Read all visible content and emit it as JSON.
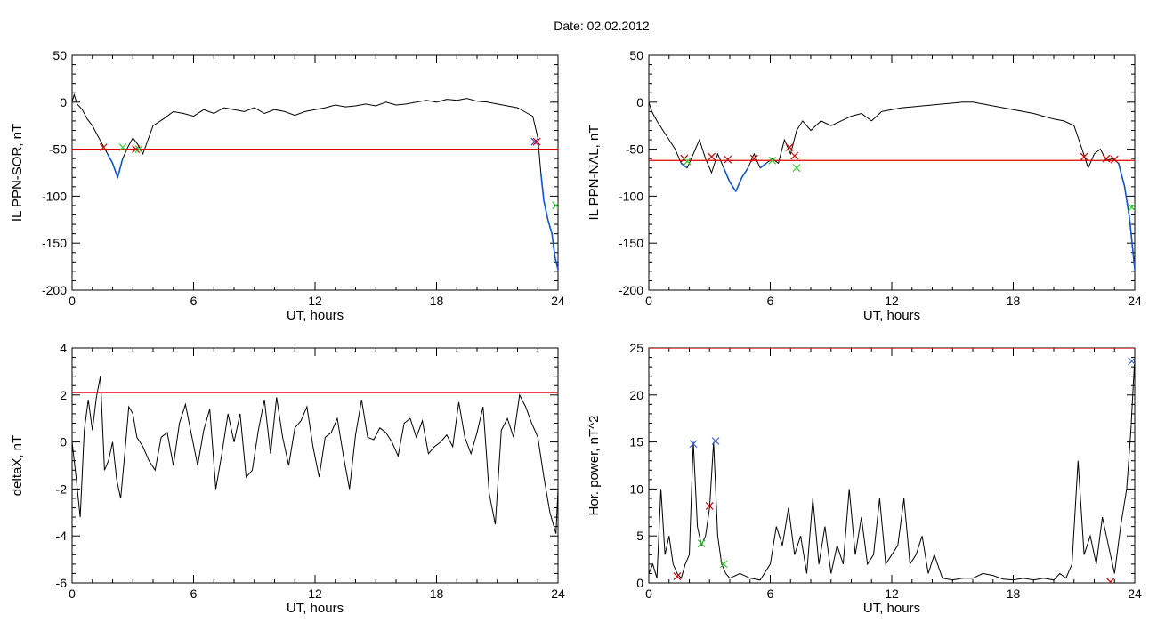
{
  "figure_title": "Date:  02.02.2012",
  "chart_data": [
    {
      "type": "line",
      "ylabel": "IL PPN-SOR, nT",
      "xlabel": "UT, hours",
      "xlim": [
        0,
        24
      ],
      "ylim": [
        -200,
        50
      ],
      "xticks": [
        "0",
        "6",
        "12",
        "18",
        "24"
      ],
      "yticks": [
        "50",
        "0",
        "-50",
        "-100",
        "-150",
        "-200"
      ],
      "threshold": -50,
      "threshold_color": "#dd0000",
      "series": [
        {
          "line_color": "#000000",
          "x": [
            0,
            0.1,
            0.25,
            0.5,
            0.75,
            1.0,
            1.25,
            1.5,
            1.75,
            2.0,
            2.25,
            2.5,
            2.75,
            3.0,
            3.25,
            3.5,
            3.75,
            4.0,
            4.5,
            5.0,
            5.5,
            6.0,
            6.5,
            7.0,
            7.5,
            8.0,
            8.5,
            9.0,
            9.5,
            10.0,
            10.5,
            11.0,
            11.5,
            12.0,
            12.5,
            13.0,
            13.5,
            14.0,
            14.5,
            15.0,
            15.5,
            16.0,
            16.5,
            17.0,
            17.5,
            18.0,
            18.5,
            19.0,
            19.5,
            20.0,
            20.5,
            21.0,
            21.5,
            22.0,
            22.5,
            22.75,
            23.0,
            23.15,
            23.3,
            23.5,
            23.7,
            23.85,
            24.0
          ],
          "y": [
            0,
            8,
            -2,
            -8,
            -18,
            -25,
            -35,
            -45,
            -55,
            -65,
            -80,
            -60,
            -48,
            -38,
            -45,
            -55,
            -40,
            -25,
            -18,
            -10,
            -12,
            -15,
            -8,
            -12,
            -6,
            -8,
            -10,
            -6,
            -12,
            -8,
            -10,
            -14,
            -10,
            -8,
            -6,
            -3,
            -5,
            -4,
            -2,
            -4,
            0,
            -3,
            -2,
            0,
            2,
            0,
            3,
            2,
            4,
            1,
            0,
            -2,
            -4,
            -6,
            -12,
            -15,
            -38,
            -75,
            -105,
            -125,
            -140,
            -165,
            -178
          ]
        }
      ],
      "below_threshold_color": "#1155cc",
      "markers": [
        {
          "x": 1.55,
          "y": -48,
          "symbol": "x",
          "color": "#cc0000"
        },
        {
          "x": 2.5,
          "y": -48,
          "symbol": "x",
          "color": "#33cc33"
        },
        {
          "x": 3.15,
          "y": -50,
          "symbol": "x",
          "color": "#cc0000"
        },
        {
          "x": 3.3,
          "y": -50,
          "symbol": "x",
          "color": "#33cc33"
        },
        {
          "x": 22.85,
          "y": -42,
          "symbol": "x",
          "color": "#4455cc"
        },
        {
          "x": 22.95,
          "y": -42,
          "symbol": "x",
          "color": "#cc0000"
        },
        {
          "x": 23.9,
          "y": -110,
          "symbol": "x",
          "color": "#33cc33"
        }
      ]
    },
    {
      "type": "line",
      "ylabel": "IL PPN-NAL, nT",
      "xlabel": "UT, hours",
      "xlim": [
        0,
        24
      ],
      "ylim": [
        -200,
        50
      ],
      "xticks": [
        "0",
        "6",
        "12",
        "18",
        "24"
      ],
      "yticks": [
        "50",
        "0",
        "-50",
        "-100",
        "-150",
        "-200"
      ],
      "threshold": -62,
      "threshold_color": "#dd0000",
      "series": [
        {
          "line_color": "#000000",
          "x": [
            0,
            0.15,
            0.4,
            0.7,
            1.0,
            1.3,
            1.6,
            1.9,
            2.2,
            2.5,
            2.8,
            3.1,
            3.4,
            3.7,
            4.0,
            4.3,
            4.6,
            4.9,
            5.2,
            5.5,
            5.8,
            6.1,
            6.4,
            6.7,
            7.0,
            7.3,
            7.6,
            8.0,
            8.5,
            9.0,
            9.5,
            10.0,
            10.5,
            11.0,
            11.5,
            12.0,
            12.5,
            13.0,
            13.5,
            14.0,
            14.5,
            15.0,
            15.5,
            16.0,
            16.5,
            17.0,
            17.5,
            18.0,
            18.5,
            19.0,
            19.5,
            20.0,
            20.5,
            21.0,
            21.4,
            21.7,
            22.0,
            22.3,
            22.6,
            22.9,
            23.2,
            23.5,
            23.75,
            24.0
          ],
          "y": [
            0,
            -10,
            -20,
            -30,
            -40,
            -50,
            -65,
            -70,
            -55,
            -40,
            -60,
            -75,
            -55,
            -70,
            -85,
            -95,
            -80,
            -70,
            -55,
            -70,
            -65,
            -60,
            -65,
            -40,
            -55,
            -30,
            -20,
            -30,
            -20,
            -25,
            -20,
            -15,
            -12,
            -20,
            -10,
            -8,
            -6,
            -5,
            -4,
            -3,
            -2,
            -1,
            0,
            0,
            -2,
            -4,
            -6,
            -8,
            -10,
            -12,
            -15,
            -18,
            -20,
            -25,
            -50,
            -70,
            -55,
            -50,
            -62,
            -60,
            -65,
            -90,
            -125,
            -178
          ]
        }
      ],
      "below_threshold_color": "#1155cc",
      "markers": [
        {
          "x": 1.75,
          "y": -60,
          "symbol": "x",
          "color": "#cc0000"
        },
        {
          "x": 1.9,
          "y": -63,
          "symbol": "x",
          "color": "#33cc33"
        },
        {
          "x": 3.1,
          "y": -58,
          "symbol": "x",
          "color": "#cc0000"
        },
        {
          "x": 3.9,
          "y": -61,
          "symbol": "x",
          "color": "#cc0000"
        },
        {
          "x": 5.2,
          "y": -60,
          "symbol": "x",
          "color": "#cc0000"
        },
        {
          "x": 6.1,
          "y": -62,
          "symbol": "x",
          "color": "#33cc33"
        },
        {
          "x": 6.95,
          "y": -48,
          "symbol": "x",
          "color": "#cc0000"
        },
        {
          "x": 7.2,
          "y": -57,
          "symbol": "x",
          "color": "#cc0000"
        },
        {
          "x": 7.3,
          "y": -70,
          "symbol": "x",
          "color": "#33cc33"
        },
        {
          "x": 21.5,
          "y": -58,
          "symbol": "x",
          "color": "#cc0000"
        },
        {
          "x": 22.6,
          "y": -60,
          "symbol": "x",
          "color": "#cc0000"
        },
        {
          "x": 23.0,
          "y": -61,
          "symbol": "x",
          "color": "#cc0000"
        },
        {
          "x": 23.85,
          "y": -112,
          "symbol": "x",
          "color": "#33cc33"
        }
      ]
    },
    {
      "type": "line",
      "ylabel": "deltaX, nT",
      "xlabel": "UT, hours",
      "xlim": [
        0,
        24
      ],
      "ylim": [
        -6,
        4
      ],
      "xticks": [
        "0",
        "6",
        "12",
        "18",
        "24"
      ],
      "yticks": [
        "4",
        "2",
        "0",
        "-2",
        "-4",
        "-6"
      ],
      "threshold": 2.1,
      "threshold_color": "#dd0000",
      "series": [
        {
          "line_color": "#000000",
          "x": [
            0,
            0.2,
            0.4,
            0.6,
            0.8,
            1.0,
            1.2,
            1.4,
            1.6,
            1.8,
            2.0,
            2.2,
            2.4,
            2.6,
            2.8,
            3.0,
            3.2,
            3.5,
            3.8,
            4.1,
            4.4,
            4.7,
            5.0,
            5.3,
            5.6,
            5.9,
            6.2,
            6.5,
            6.8,
            7.1,
            7.4,
            7.7,
            8.0,
            8.3,
            8.6,
            8.9,
            9.2,
            9.5,
            9.8,
            10.1,
            10.4,
            10.7,
            11.0,
            11.3,
            11.6,
            11.9,
            12.2,
            12.5,
            12.8,
            13.1,
            13.4,
            13.7,
            14.0,
            14.3,
            14.6,
            14.9,
            15.2,
            15.5,
            15.8,
            16.1,
            16.4,
            16.7,
            17.0,
            17.3,
            17.6,
            17.9,
            18.2,
            18.5,
            18.8,
            19.1,
            19.4,
            19.7,
            20.0,
            20.3,
            20.6,
            20.9,
            21.2,
            21.5,
            21.8,
            22.1,
            22.4,
            22.7,
            23.0,
            23.3,
            23.6,
            23.9,
            24.0
          ],
          "y": [
            0,
            -1.5,
            -3.2,
            0.5,
            1.8,
            0.5,
            1.9,
            2.8,
            -1.2,
            -0.8,
            0,
            -1.6,
            -2.4,
            -0.5,
            1.5,
            1.2,
            0.2,
            -0.2,
            -0.8,
            -1.2,
            0.2,
            0.4,
            -1.0,
            0.8,
            1.6,
            0.3,
            -1.0,
            0.5,
            1.4,
            -2.0,
            -0.5,
            1.2,
            0.0,
            1.2,
            -1.5,
            -1.2,
            0.5,
            1.8,
            -0.5,
            1.9,
            0.2,
            -1.0,
            0.6,
            0.9,
            1.5,
            -0.2,
            -1.5,
            0.2,
            0.4,
            1.0,
            -0.6,
            -2.0,
            0.3,
            1.8,
            0.2,
            0.1,
            0.6,
            0.4,
            0.0,
            -0.6,
            0.8,
            1.0,
            0.2,
            0.9,
            -0.5,
            -0.2,
            0.0,
            0.3,
            -0.2,
            1.7,
            0.2,
            -0.5,
            0.4,
            1.5,
            -2.2,
            -3.5,
            0.5,
            1.0,
            0.2,
            2.0,
            1.5,
            0.8,
            0.2,
            -1.5,
            -3.0,
            -3.9,
            -2.0
          ]
        }
      ]
    },
    {
      "type": "line",
      "ylabel": "Hor. power, nT^2",
      "xlabel": "UT, hours",
      "xlim": [
        0,
        24
      ],
      "ylim": [
        0,
        25
      ],
      "xticks": [
        "0",
        "6",
        "12",
        "18",
        "24"
      ],
      "yticks": [
        "25",
        "20",
        "15",
        "10",
        "5",
        "0"
      ],
      "threshold": 25,
      "threshold_color": "#dd0000",
      "series": [
        {
          "line_color": "#000000",
          "x": [
            0,
            0.2,
            0.4,
            0.6,
            0.8,
            1.0,
            1.2,
            1.4,
            1.6,
            1.8,
            2.0,
            2.2,
            2.4,
            2.6,
            2.8,
            3.0,
            3.2,
            3.4,
            3.6,
            3.8,
            4.0,
            4.5,
            5.0,
            5.5,
            6.0,
            6.3,
            6.6,
            6.9,
            7.2,
            7.5,
            7.8,
            8.1,
            8.4,
            8.7,
            9.0,
            9.3,
            9.6,
            9.9,
            10.2,
            10.5,
            10.8,
            11.1,
            11.4,
            11.7,
            12.0,
            12.3,
            12.6,
            12.9,
            13.2,
            13.5,
            13.8,
            14.1,
            14.5,
            15.0,
            15.5,
            16.0,
            16.5,
            17.0,
            17.5,
            18.0,
            18.5,
            19.0,
            19.5,
            20.0,
            20.3,
            20.6,
            20.9,
            21.2,
            21.5,
            21.8,
            22.1,
            22.4,
            22.7,
            23.0,
            23.3,
            23.6,
            23.8,
            24.0
          ],
          "y": [
            1,
            2,
            0.5,
            10,
            3,
            5,
            2,
            1,
            0.5,
            2,
            3,
            15,
            6,
            4,
            5,
            8,
            15,
            5,
            2,
            1,
            0.5,
            1,
            0.5,
            0.3,
            2,
            6,
            4,
            8,
            3,
            5,
            1,
            9,
            2,
            6,
            1,
            4,
            2,
            10,
            3,
            7,
            2,
            3,
            9,
            2,
            3,
            4,
            9,
            2,
            3,
            5,
            1,
            3,
            0.5,
            0.3,
            0.5,
            0.5,
            1,
            0.8,
            0.4,
            0.3,
            0.5,
            0.3,
            0.5,
            0.3,
            1,
            0.5,
            2,
            13,
            3,
            5,
            2,
            7,
            4,
            1,
            6,
            10,
            16,
            24
          ]
        }
      ],
      "markers": [
        {
          "x": 1.4,
          "y": 0.7,
          "symbol": "x",
          "color": "#cc0000"
        },
        {
          "x": 2.2,
          "y": 14.8,
          "symbol": "x",
          "color": "#4466cc"
        },
        {
          "x": 2.6,
          "y": 4.2,
          "symbol": "x",
          "color": "#33cc33"
        },
        {
          "x": 3.0,
          "y": 8.2,
          "symbol": "x",
          "color": "#cc0000"
        },
        {
          "x": 3.3,
          "y": 15.1,
          "symbol": "x",
          "color": "#4466cc"
        },
        {
          "x": 3.7,
          "y": 2.0,
          "symbol": "x",
          "color": "#33cc33"
        },
        {
          "x": 22.8,
          "y": 0.1,
          "symbol": "x",
          "color": "#cc0000"
        },
        {
          "x": 23.85,
          "y": 23.6,
          "symbol": "x",
          "color": "#4466cc"
        }
      ]
    }
  ]
}
